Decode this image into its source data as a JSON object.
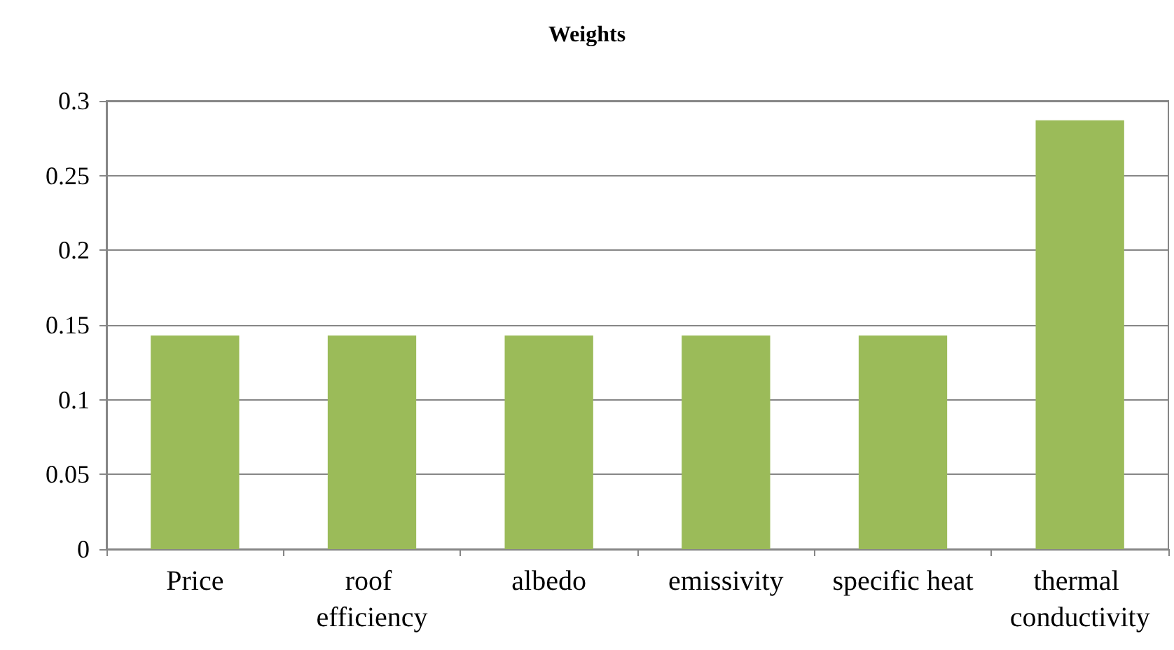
{
  "chart_data": {
    "type": "bar",
    "title": "Weights",
    "categories": [
      "Price",
      "roof efficiency",
      "albedo",
      "emissivity",
      "specific heat",
      "thermal conductivity"
    ],
    "values": [
      0.143,
      0.143,
      0.143,
      0.143,
      0.143,
      0.287
    ],
    "color": "#9bbb59",
    "ylim": [
      0,
      0.3
    ],
    "yticks": [
      0,
      0.05,
      0.1,
      0.15,
      0.2,
      0.25,
      0.3
    ],
    "grid": "y"
  }
}
